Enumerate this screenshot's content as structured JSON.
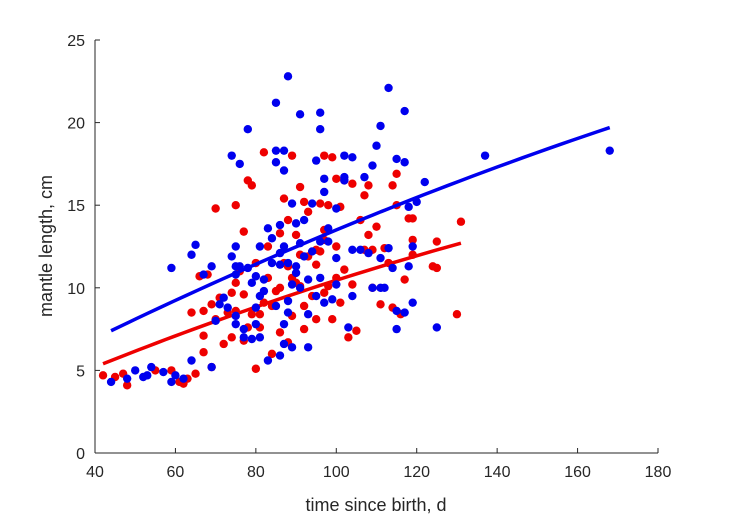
{
  "chart_data": {
    "type": "scatter",
    "xlabel": "time since birth, d",
    "ylabel": "mantle length, cm",
    "xlim": [
      40,
      180
    ],
    "ylim": [
      0,
      25
    ],
    "xticks": [
      40,
      60,
      80,
      100,
      120,
      140,
      160,
      180
    ],
    "yticks": [
      0,
      5,
      10,
      15,
      20,
      25
    ],
    "grid": false,
    "legend": "none",
    "colors": {
      "red": "#ee0000",
      "blue": "#0000ee",
      "axis": "#262626"
    },
    "series": [
      {
        "color": "#ee0000",
        "points": [
          [
            42,
            4.7
          ],
          [
            45,
            4.6
          ],
          [
            47,
            4.8
          ],
          [
            48,
            4.1
          ],
          [
            55,
            5.0
          ],
          [
            59,
            5.0
          ],
          [
            61,
            4.3
          ],
          [
            62,
            4.2
          ],
          [
            63,
            4.5
          ],
          [
            64,
            8.5
          ],
          [
            65,
            4.8
          ],
          [
            66,
            10.7
          ],
          [
            67,
            8.6
          ],
          [
            67,
            6.1
          ],
          [
            67,
            7.1
          ],
          [
            68,
            10.8
          ],
          [
            69,
            5.2
          ],
          [
            69,
            9.0
          ],
          [
            70,
            8.1
          ],
          [
            70,
            14.8
          ],
          [
            71,
            9.4
          ],
          [
            72,
            6.6
          ],
          [
            73,
            8.5
          ],
          [
            74,
            7.0
          ],
          [
            74,
            9.7
          ],
          [
            75,
            10.3
          ],
          [
            75,
            15.0
          ],
          [
            75,
            8.6
          ],
          [
            76,
            11.0
          ],
          [
            77,
            6.8
          ],
          [
            77,
            9.6
          ],
          [
            77,
            13.4
          ],
          [
            78,
            16.5
          ],
          [
            78,
            7.6
          ],
          [
            79,
            16.2
          ],
          [
            79,
            8.4
          ],
          [
            80,
            5.1
          ],
          [
            80,
            11.5
          ],
          [
            81,
            7.6
          ],
          [
            81,
            8.4
          ],
          [
            82,
            9.1
          ],
          [
            82,
            18.2
          ],
          [
            83,
            10.6
          ],
          [
            83,
            12.5
          ],
          [
            84,
            8.9
          ],
          [
            84,
            6.0
          ],
          [
            85,
            9.8
          ],
          [
            86,
            7.3
          ],
          [
            86,
            13.3
          ],
          [
            86,
            10.0
          ],
          [
            87,
            11.5
          ],
          [
            87,
            15.4
          ],
          [
            88,
            6.7
          ],
          [
            88,
            11.3
          ],
          [
            88,
            14.1
          ],
          [
            89,
            18.0
          ],
          [
            89,
            8.3
          ],
          [
            89,
            10.6
          ],
          [
            90,
            10.3
          ],
          [
            90,
            13.2
          ],
          [
            91,
            10.1
          ],
          [
            91,
            16.1
          ],
          [
            91,
            12.0
          ],
          [
            92,
            8.9
          ],
          [
            92,
            15.2
          ],
          [
            92,
            7.5
          ],
          [
            93,
            11.9
          ],
          [
            93,
            14.6
          ],
          [
            94,
            9.5
          ],
          [
            95,
            11.4
          ],
          [
            95,
            12.3
          ],
          [
            95,
            8.1
          ],
          [
            96,
            12.2
          ],
          [
            96,
            15.1
          ],
          [
            97,
            18.0
          ],
          [
            97,
            12.9
          ],
          [
            97,
            13.5
          ],
          [
            97,
            9.7
          ],
          [
            98,
            10.1
          ],
          [
            98,
            15.0
          ],
          [
            99,
            8.1
          ],
          [
            99,
            17.9
          ],
          [
            100,
            10.6
          ],
          [
            100,
            12.5
          ],
          [
            100,
            16.6
          ],
          [
            101,
            9.1
          ],
          [
            101,
            14.9
          ],
          [
            102,
            16.5
          ],
          [
            102,
            11.1
          ],
          [
            103,
            7.0
          ],
          [
            104,
            10.2
          ],
          [
            104,
            16.3
          ],
          [
            105,
            7.4
          ],
          [
            106,
            14.1
          ],
          [
            107,
            12.3
          ],
          [
            107,
            15.6
          ],
          [
            108,
            16.2
          ],
          [
            108,
            13.2
          ],
          [
            109,
            10.0
          ],
          [
            109,
            12.3
          ],
          [
            110,
            13.7
          ],
          [
            111,
            9.0
          ],
          [
            112,
            12.4
          ],
          [
            113,
            11.5
          ],
          [
            114,
            16.2
          ],
          [
            114,
            8.8
          ],
          [
            115,
            15.0
          ],
          [
            115,
            16.9
          ],
          [
            116,
            8.4
          ],
          [
            117,
            10.5
          ],
          [
            118,
            14.2
          ],
          [
            119,
            12.0
          ],
          [
            119,
            12.9
          ],
          [
            119,
            14.2
          ],
          [
            124,
            11.3
          ],
          [
            125,
            12.8
          ],
          [
            125,
            11.2
          ],
          [
            130,
            8.4
          ],
          [
            131,
            14.0
          ]
        ],
        "trend": {
          "x": [
            42,
            131
          ],
          "y": [
            5.4,
            12.7
          ]
        }
      },
      {
        "color": "#0000ee",
        "points": [
          [
            44,
            4.3
          ],
          [
            48,
            4.5
          ],
          [
            50,
            5.0
          ],
          [
            52,
            4.6
          ],
          [
            53,
            4.7
          ],
          [
            54,
            5.2
          ],
          [
            57,
            4.9
          ],
          [
            59,
            4.3
          ],
          [
            59,
            11.2
          ],
          [
            60,
            4.7
          ],
          [
            62,
            4.5
          ],
          [
            64,
            12.0
          ],
          [
            64,
            5.6
          ],
          [
            65,
            12.6
          ],
          [
            67,
            10.8
          ],
          [
            69,
            11.3
          ],
          [
            69,
            5.2
          ],
          [
            70,
            8.0
          ],
          [
            71,
            9.0
          ],
          [
            72,
            9.4
          ],
          [
            73,
            8.8
          ],
          [
            74,
            11.9
          ],
          [
            74,
            18.0
          ],
          [
            75,
            11.3
          ],
          [
            75,
            12.5
          ],
          [
            75,
            10.8
          ],
          [
            75,
            8.3
          ],
          [
            75,
            7.8
          ],
          [
            76,
            17.5
          ],
          [
            76,
            11.3
          ],
          [
            77,
            7.5
          ],
          [
            77,
            7.0
          ],
          [
            78,
            11.2
          ],
          [
            78,
            19.6
          ],
          [
            79,
            10.3
          ],
          [
            79,
            6.9
          ],
          [
            80,
            7.8
          ],
          [
            80,
            10.7
          ],
          [
            80,
            8.8
          ],
          [
            81,
            7.0
          ],
          [
            81,
            9.5
          ],
          [
            81,
            12.5
          ],
          [
            82,
            9.8
          ],
          [
            82,
            10.5
          ],
          [
            83,
            13.6
          ],
          [
            83,
            5.6
          ],
          [
            84,
            11.5
          ],
          [
            84,
            13.0
          ],
          [
            85,
            18.3
          ],
          [
            85,
            17.6
          ],
          [
            85,
            21.2
          ],
          [
            85,
            8.9
          ],
          [
            86,
            11.4
          ],
          [
            86,
            12.1
          ],
          [
            86,
            13.8
          ],
          [
            86,
            5.9
          ],
          [
            87,
            6.6
          ],
          [
            87,
            7.8
          ],
          [
            87,
            17.1
          ],
          [
            87,
            18.3
          ],
          [
            87,
            12.5
          ],
          [
            88,
            22.8
          ],
          [
            88,
            11.5
          ],
          [
            88,
            9.2
          ],
          [
            88,
            8.5
          ],
          [
            89,
            10.2
          ],
          [
            89,
            15.1
          ],
          [
            89,
            6.4
          ],
          [
            90,
            13.9
          ],
          [
            90,
            11.3
          ],
          [
            90,
            10.9
          ],
          [
            91,
            10.0
          ],
          [
            91,
            12.7
          ],
          [
            91,
            20.5
          ],
          [
            92,
            14.1
          ],
          [
            92,
            11.9
          ],
          [
            93,
            8.4
          ],
          [
            93,
            10.5
          ],
          [
            93,
            6.4
          ],
          [
            94,
            12.2
          ],
          [
            94,
            15.1
          ],
          [
            95,
            9.5
          ],
          [
            95,
            17.7
          ],
          [
            96,
            20.6
          ],
          [
            96,
            19.6
          ],
          [
            96,
            10.6
          ],
          [
            96,
            12.8
          ],
          [
            97,
            9.1
          ],
          [
            97,
            16.6
          ],
          [
            97,
            15.8
          ],
          [
            98,
            12.8
          ],
          [
            98,
            13.6
          ],
          [
            99,
            9.3
          ],
          [
            100,
            14.8
          ],
          [
            100,
            11.8
          ],
          [
            100,
            10.2
          ],
          [
            102,
            16.7
          ],
          [
            102,
            18.0
          ],
          [
            102,
            16.5
          ],
          [
            103,
            7.6
          ],
          [
            104,
            12.3
          ],
          [
            104,
            17.9
          ],
          [
            104,
            9.5
          ],
          [
            106,
            12.3
          ],
          [
            107,
            16.7
          ],
          [
            108,
            12.1
          ],
          [
            109,
            10.0
          ],
          [
            109,
            17.4
          ],
          [
            110,
            18.6
          ],
          [
            111,
            19.8
          ],
          [
            111,
            11.8
          ],
          [
            111,
            10.0
          ],
          [
            112,
            10.0
          ],
          [
            113,
            22.1
          ],
          [
            113,
            12.4
          ],
          [
            114,
            11.2
          ],
          [
            115,
            8.6
          ],
          [
            115,
            7.5
          ],
          [
            115,
            17.8
          ],
          [
            117,
            17.6
          ],
          [
            117,
            20.7
          ],
          [
            117,
            8.5
          ],
          [
            118,
            11.3
          ],
          [
            118,
            14.9
          ],
          [
            119,
            9.1
          ],
          [
            119,
            12.5
          ],
          [
            120,
            15.2
          ],
          [
            122,
            16.4
          ],
          [
            125,
            7.6
          ],
          [
            137,
            18.0
          ],
          [
            168,
            18.3
          ]
        ],
        "trend": {
          "x": [
            44,
            168
          ],
          "y": [
            7.4,
            19.7
          ]
        }
      }
    ]
  }
}
